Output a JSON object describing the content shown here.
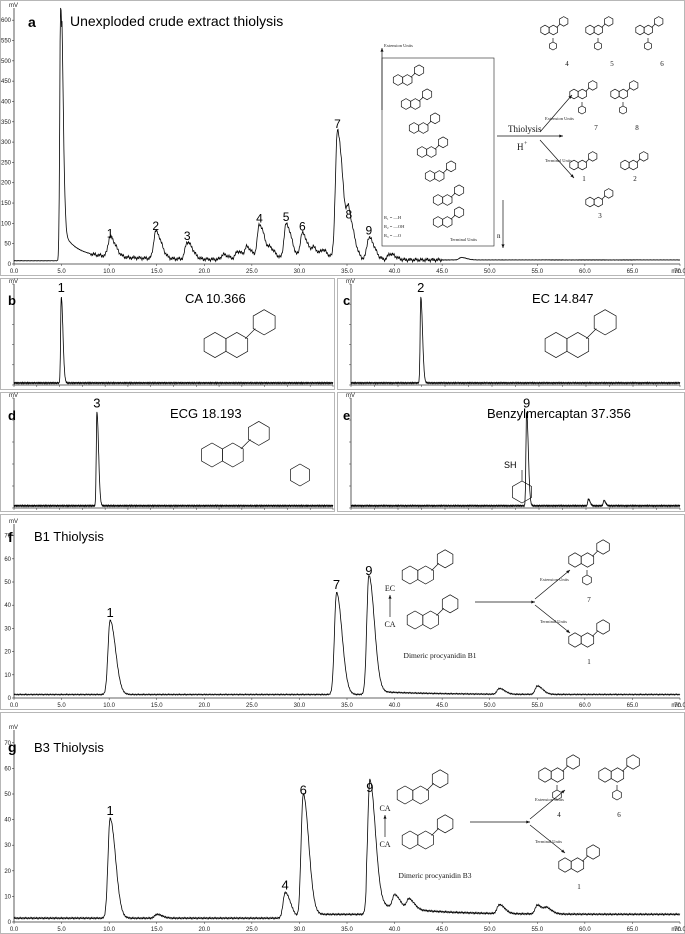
{
  "chart_data": [
    {
      "panel": "a",
      "type": "line",
      "title": "Unexploded crude extract thiolysis",
      "ylabel": "mV",
      "xlabel": "min",
      "xlim": [
        0,
        70
      ],
      "ylim": [
        0,
        630
      ],
      "yticks": [
        0,
        50,
        100,
        150,
        200,
        250,
        300,
        350,
        400,
        450,
        500,
        550,
        600
      ],
      "xticks": [
        "0.0",
        "5.0",
        "10.0",
        "15.0",
        "20.0",
        "25.0",
        "30.0",
        "35.0",
        "40.0",
        "45.0",
        "50.0",
        "55.0",
        "60.0",
        "65.0",
        "70.0"
      ],
      "peaks": [
        {
          "label": "1",
          "x": 10.1,
          "y": 48
        },
        {
          "label": "2",
          "x": 14.9,
          "y": 67
        },
        {
          "label": "3",
          "x": 18.2,
          "y": 42
        },
        {
          "label": "4",
          "x": 25.8,
          "y": 85
        },
        {
          "label": "5",
          "x": 28.6,
          "y": 88
        },
        {
          "label": "6",
          "x": 30.3,
          "y": 65
        },
        {
          "label": "7",
          "x": 34.0,
          "y": 318
        },
        {
          "label": "8",
          "x": 35.2,
          "y": 95
        },
        {
          "label": "9",
          "x": 37.3,
          "y": 55
        }
      ],
      "solvent_peak": {
        "x": 4.9,
        "y": 630
      },
      "scheme": {
        "extension_units": "Extension Units",
        "terminal_units": "Terminal Units",
        "n": "n",
        "reagent": "Thiolysis",
        "proton": "H",
        "proton_sup": "+",
        "arrow_up": "Extension Units",
        "arrow_down": "Terminal Units",
        "r1": "R₁ = —H",
        "r2": "R₂ = —OH",
        "r3": "R₃ = —O",
        "product_labels": [
          "4",
          "5",
          "6",
          "7",
          "8",
          "1",
          "2",
          "3"
        ]
      }
    },
    {
      "panel": "b",
      "type": "line",
      "title": "CA 10.366",
      "ylabel": "mV",
      "xlim": [
        0,
        70
      ],
      "peaks": [
        {
          "label": "1",
          "x": 10.37,
          "y": 0.85
        }
      ]
    },
    {
      "panel": "c",
      "type": "line",
      "title": "EC 14.847",
      "ylabel": "mV",
      "xlim": [
        0,
        70
      ],
      "peaks": [
        {
          "label": "2",
          "x": 14.85,
          "y": 0.85
        }
      ]
    },
    {
      "panel": "d",
      "type": "line",
      "title": "ECG 18.193",
      "ylabel": "mV",
      "xlim": [
        0,
        70
      ],
      "peaks": [
        {
          "label": "3",
          "x": 18.19,
          "y": 0.85
        }
      ]
    },
    {
      "panel": "e",
      "type": "line",
      "title": "Benzylmercaptan 37.356",
      "ylabel": "mV",
      "xlim": [
        0,
        70
      ],
      "peaks": [
        {
          "label": "9",
          "x": 37.36,
          "y": 0.85
        }
      ],
      "structure_label": "SH"
    },
    {
      "panel": "f",
      "type": "line",
      "title": "B1 Thiolysis",
      "ylabel": "mV",
      "xlabel": "min",
      "xlim": [
        0,
        70
      ],
      "ylim": [
        0,
        75
      ],
      "yticks": [
        0,
        10,
        20,
        30,
        40,
        50,
        60,
        70
      ],
      "xticks": [
        "0.0",
        "5.0",
        "10.0",
        "15.0",
        "20.0",
        "25.0",
        "30.0",
        "35.0",
        "40.0",
        "45.0",
        "50.0",
        "55.0",
        "60.0",
        "65.0",
        "70.0"
      ],
      "peaks": [
        {
          "label": "1",
          "x": 10.1,
          "y": 32
        },
        {
          "label": "7",
          "x": 33.9,
          "y": 44
        },
        {
          "label": "9",
          "x": 37.3,
          "y": 50
        }
      ],
      "scheme": {
        "molecule": "Dimeric procyanidin B1",
        "upper_unit": "EC",
        "lower_unit": "CA",
        "arrow_up": "Extension Units",
        "arrow_down": "Terminal Units",
        "product_labels": [
          "7",
          "1"
        ]
      }
    },
    {
      "panel": "g",
      "type": "line",
      "title": "B3 Thiolysis",
      "ylabel": "mV",
      "xlabel": "min",
      "xlim": [
        0,
        70
      ],
      "ylim": [
        0,
        75
      ],
      "yticks": [
        0,
        10,
        20,
        30,
        40,
        50,
        60,
        70
      ],
      "xticks": [
        "0.0",
        "5.0",
        "10.0",
        "15.0",
        "20.0",
        "25.0",
        "30.0",
        "35.0",
        "40.0",
        "45.0",
        "50.0",
        "55.0",
        "60.0",
        "65.0",
        "70.0"
      ],
      "peaks": [
        {
          "label": "1",
          "x": 10.1,
          "y": 39
        },
        {
          "label": "4",
          "x": 28.5,
          "y": 10
        },
        {
          "label": "6",
          "x": 30.4,
          "y": 47
        },
        {
          "label": "9",
          "x": 37.4,
          "y": 48
        }
      ],
      "scheme": {
        "molecule": "Dimeric procyanidin B3",
        "upper_unit": "CA",
        "lower_unit": "CA",
        "arrow_up": "Extension Units",
        "arrow_down": "Terminal Units",
        "product_labels": [
          "4",
          "6",
          "1"
        ]
      }
    }
  ],
  "colors": {
    "trace": "#000000",
    "axis": "#333333",
    "panel_border": "#888888"
  }
}
